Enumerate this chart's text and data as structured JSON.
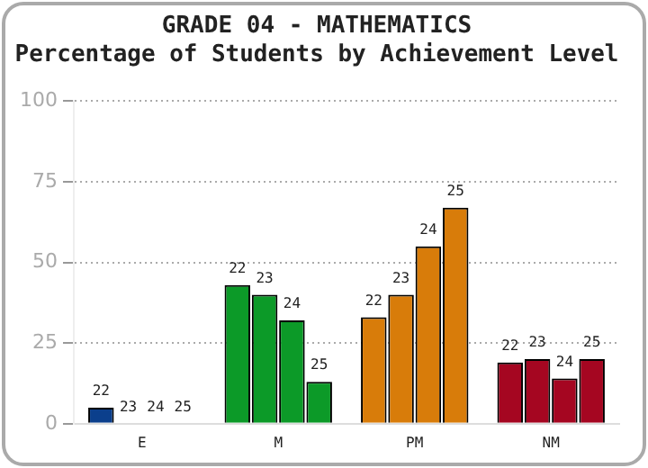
{
  "chart_data": {
    "type": "bar",
    "title": "GRADE 04 - MATHEMATICS",
    "subtitle": "Percentage of Students by Achievement Level",
    "categories": [
      "E",
      "M",
      "PM",
      "NM"
    ],
    "series": [
      {
        "name": "22",
        "colors": [
          "#0b3f8c",
          "#0c9a28",
          "#d87c0a",
          "#a50621"
        ],
        "values": [
          5,
          43,
          33,
          19
        ]
      },
      {
        "name": "23",
        "colors": [
          "#0b3f8c",
          "#0c9a28",
          "#d87c0a",
          "#a50621"
        ],
        "values": [
          0,
          40,
          40,
          20
        ]
      },
      {
        "name": "24",
        "colors": [
          "#0b3f8c",
          "#0c9a28",
          "#d87c0a",
          "#a50621"
        ],
        "values": [
          0,
          32,
          55,
          14
        ]
      },
      {
        "name": "25",
        "colors": [
          "#0b3f8c",
          "#0c9a28",
          "#d87c0a",
          "#a50621"
        ],
        "values": [
          0,
          13,
          67,
          20
        ]
      }
    ],
    "ylim": [
      0,
      100
    ],
    "yticks": [
      0,
      25,
      50,
      75,
      100
    ],
    "grid": "y",
    "legend": false
  }
}
